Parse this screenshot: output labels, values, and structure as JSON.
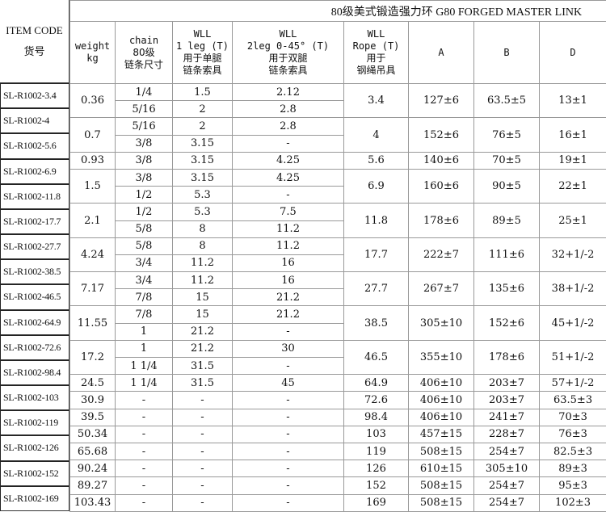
{
  "title": "80级美式锻造强力环  G80 FORGED MASTER LINK",
  "headers": {
    "item_code": "ITEM CODE",
    "item_code_cn": "货号",
    "weight": [
      "weight",
      "kg"
    ],
    "chain": [
      "chain",
      "80级",
      "链条尺寸"
    ],
    "leg1": [
      "WLL",
      "1 leg  (T)",
      "用于单腿",
      "链条索具"
    ],
    "leg2": [
      "WLL",
      "2leg 0-45°  (T)",
      "用于双腿",
      "链条索具"
    ],
    "rope": [
      "WLL",
      "Rope  (T)",
      "用于",
      "钢绳吊具"
    ],
    "a": "A",
    "b": "B",
    "d": "D"
  },
  "item_codes": [
    "SL-R1002-3.4",
    "SL-R1002-4",
    "SL-R1002-5.6",
    "SL-R1002-6.9",
    "SL-R1002-11.8",
    "SL-R1002-17.7",
    "SL-R1002-27.7",
    "SL-R1002-38.5",
    "SL-R1002-46.5",
    "SL-R1002-64.9",
    "SL-R1002-72.6",
    "SL-R1002-98.4",
    "SL-R1002-103",
    "SL-R1002-119",
    "SL-R1002-126",
    "SL-R1002-152",
    "SL-R1002-169"
  ],
  "groups": [
    {
      "weight": "0.36",
      "rope": "3.4",
      "a": "127±6",
      "b": "63.5±5",
      "d": "13±1",
      "rows": [
        {
          "chain": "1/4",
          "leg1": "1.5",
          "leg2": "2.12"
        },
        {
          "chain": "5/16",
          "leg1": "2",
          "leg2": "2.8"
        }
      ]
    },
    {
      "weight": "0.7",
      "rope": "4",
      "a": "152±6",
      "b": "76±5",
      "d": "16±1",
      "rows": [
        {
          "chain": "5/16",
          "leg1": "2",
          "leg2": "2.8"
        },
        {
          "chain": "3/8",
          "leg1": "3.15",
          "leg2": "-"
        }
      ]
    },
    {
      "weight": "0.93",
      "rope": "5.6",
      "a": "140±6",
      "b": "70±5",
      "d": "19±1",
      "rows": [
        {
          "chain": "3/8",
          "leg1": "3.15",
          "leg2": "4.25"
        }
      ]
    },
    {
      "weight": "1.5",
      "rope": "6.9",
      "a": "160±6",
      "b": "90±5",
      "d": "22±1",
      "rows": [
        {
          "chain": "3/8",
          "leg1": "3.15",
          "leg2": "4.25"
        },
        {
          "chain": "1/2",
          "leg1": "5.3",
          "leg2": "-"
        }
      ]
    },
    {
      "weight": "2.1",
      "rope": "11.8",
      "a": "178±6",
      "b": "89±5",
      "d": "25±1",
      "rows": [
        {
          "chain": "1/2",
          "leg1": "5.3",
          "leg2": "7.5"
        },
        {
          "chain": "5/8",
          "leg1": "8",
          "leg2": "11.2"
        }
      ]
    },
    {
      "weight": "4.24",
      "rope": "17.7",
      "a": "222±7",
      "b": "111±6",
      "d": "32+1/-2",
      "rows": [
        {
          "chain": "5/8",
          "leg1": "8",
          "leg2": "11.2"
        },
        {
          "chain": "3/4",
          "leg1": "11.2",
          "leg2": "16"
        }
      ]
    },
    {
      "weight": "7.17",
      "rope": "27.7",
      "a": "267±7",
      "b": "135±6",
      "d": "38+1/-2",
      "rows": [
        {
          "chain": "3/4",
          "leg1": "11.2",
          "leg2": "16"
        },
        {
          "chain": "7/8",
          "leg1": "15",
          "leg2": "21.2"
        }
      ]
    },
    {
      "weight": "11.55",
      "rope": "38.5",
      "a": "305±10",
      "b": "152±6",
      "d": "45+1/-2",
      "rows": [
        {
          "chain": "7/8",
          "leg1": "15",
          "leg2": "21.2"
        },
        {
          "chain": "1",
          "leg1": "21.2",
          "leg2": "-"
        }
      ]
    },
    {
      "weight": "17.2",
      "rope": "46.5",
      "a": "355±10",
      "b": "178±6",
      "d": "51+1/-2",
      "rows": [
        {
          "chain": "1",
          "leg1": "21.2",
          "leg2": "30"
        },
        {
          "chain": "1 1/4",
          "leg1": "31.5",
          "leg2": "-"
        }
      ]
    },
    {
      "weight": "24.5",
      "rope": "64.9",
      "a": "406±10",
      "b": "203±7",
      "d": "57+1/-2",
      "rows": [
        {
          "chain": "1 1/4",
          "leg1": "31.5",
          "leg2": "45"
        }
      ]
    },
    {
      "weight": "30.9",
      "rope": "72.6",
      "a": "406±10",
      "b": "203±7",
      "d": "63.5±3",
      "rows": [
        {
          "chain": "-",
          "leg1": "-",
          "leg2": "-"
        }
      ]
    },
    {
      "weight": "39.5",
      "rope": "98.4",
      "a": "406±10",
      "b": "241±7",
      "d": "70±3",
      "rows": [
        {
          "chain": "-",
          "leg1": "-",
          "leg2": "-"
        }
      ]
    },
    {
      "weight": "50.34",
      "rope": "103",
      "a": "457±15",
      "b": "228±7",
      "d": "76±3",
      "rows": [
        {
          "chain": "-",
          "leg1": "-",
          "leg2": "-"
        }
      ]
    },
    {
      "weight": "65.68",
      "rope": "119",
      "a": "508±15",
      "b": "254±7",
      "d": "82.5±3",
      "rows": [
        {
          "chain": "-",
          "leg1": "-",
          "leg2": "-"
        }
      ]
    },
    {
      "weight": "90.24",
      "rope": "126",
      "a": "610±15",
      "b": "305±10",
      "d": "89±3",
      "rows": [
        {
          "chain": "-",
          "leg1": "-",
          "leg2": "-"
        }
      ]
    },
    {
      "weight": "89.27",
      "rope": "152",
      "a": "508±15",
      "b": "254±7",
      "d": "95±3",
      "rows": [
        {
          "chain": "-",
          "leg1": "-",
          "leg2": "-"
        }
      ]
    },
    {
      "weight": "103.43",
      "rope": "169",
      "a": "508±15",
      "b": "254±7",
      "d": "102±3",
      "rows": [
        {
          "chain": "-",
          "leg1": "-",
          "leg2": "-"
        }
      ]
    }
  ]
}
